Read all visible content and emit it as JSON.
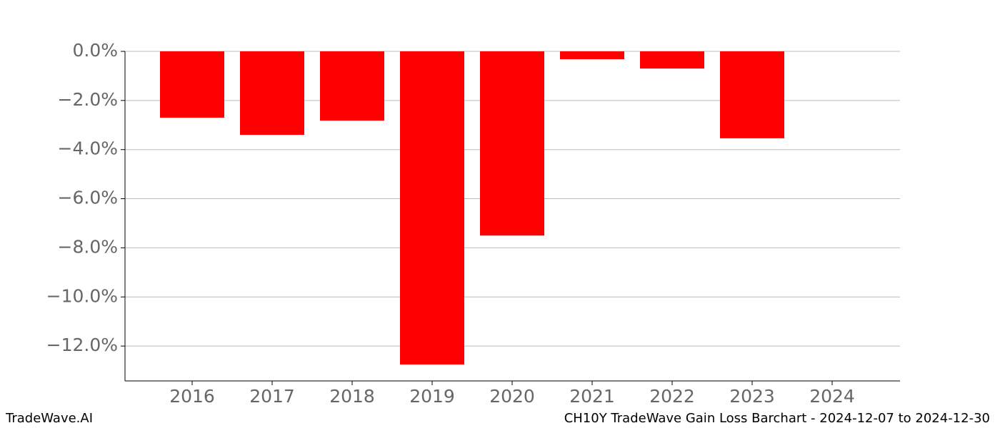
{
  "chart_data": {
    "type": "bar",
    "categories": [
      "2016",
      "2017",
      "2018",
      "2019",
      "2020",
      "2021",
      "2022",
      "2023",
      "2024"
    ],
    "values": [
      -2.7,
      -3.4,
      -2.82,
      -12.75,
      -7.5,
      -0.32,
      -0.7,
      -3.54,
      null
    ],
    "color": "#ff0000",
    "ylim": [
      -13.42,
      0
    ],
    "yticks": [
      {
        "value": 0,
        "label": "0.0%"
      },
      {
        "value": -2,
        "label": "−2.0%"
      },
      {
        "value": -4,
        "label": "−4.0%"
      },
      {
        "value": -6,
        "label": "−6.0%"
      },
      {
        "value": -8,
        "label": "−8.0%"
      },
      {
        "value": -10,
        "label": "−10.0%"
      },
      {
        "value": -12,
        "label": "−12.0%"
      }
    ],
    "grid": true,
    "footer_left": "TradeWave.AI",
    "footer_right": "CH10Y TradeWave Gain Loss Barchart - 2024-12-07 to 2024-12-30"
  }
}
